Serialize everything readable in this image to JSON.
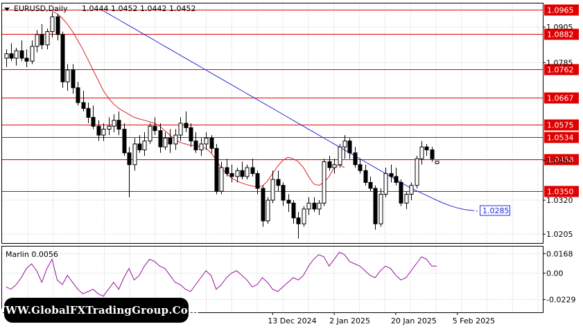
{
  "header": {
    "symbol": "EURUSD,Daily",
    "ohlc": "1.0444 1.0452 1.0442 1.0452"
  },
  "watermark": "WWW.GlobalFXTradingGroup.Com",
  "chart_data": [
    {
      "type": "candlestick",
      "title": "EURUSD,Daily",
      "ylim": [
        1.0175,
        1.0985
      ],
      "y_ticks": [
        "1.0905",
        "1.0785",
        "1.0455",
        "1.0320",
        "1.0205"
      ],
      "x_ticks": [
        {
          "label": "13 Dec 2024",
          "index": 52
        },
        {
          "label": "2 Jan 2025",
          "index": 64
        },
        {
          "label": "20 Jan 2025",
          "index": 76
        },
        {
          "label": "5 Feb 2025",
          "index": 88
        }
      ],
      "grid": true,
      "levels": [
        {
          "value": 1.0965,
          "label": "1.0965"
        },
        {
          "value": 1.0882,
          "label": "1.0882"
        },
        {
          "value": 1.0762,
          "label": "1.0762"
        },
        {
          "value": 1.0667,
          "label": "1.0667"
        },
        {
          "value": 1.0575,
          "label": "1.0575"
        },
        {
          "value": 1.0534,
          "label": "1.0534"
        },
        {
          "value": 1.0458,
          "label": "1.0458"
        },
        {
          "value": 1.035,
          "label": "1.0350"
        }
      ],
      "blue_ma_label": "1.0285",
      "colors": {
        "level": "#e00000",
        "red_ma": "#e02020",
        "blue_ma": "#1e2ad8",
        "candle": "#000000",
        "grid": "#c8c8c8",
        "label_bg": "#e00000"
      },
      "candles": [
        [
          1.08,
          1.083,
          1.077,
          1.0815
        ],
        [
          1.0815,
          1.085,
          1.079,
          1.08
        ],
        [
          1.08,
          1.0835,
          1.0775,
          1.0825
        ],
        [
          1.0825,
          1.086,
          1.079,
          1.08
        ],
        [
          1.08,
          1.083,
          1.077,
          1.079
        ],
        [
          1.079,
          1.086,
          1.078,
          1.084
        ],
        [
          1.084,
          1.0895,
          1.082,
          1.088
        ],
        [
          1.088,
          1.0915,
          1.083,
          1.0845
        ],
        [
          1.0845,
          1.09,
          1.083,
          1.089
        ],
        [
          1.089,
          1.0955,
          1.087,
          1.094
        ],
        [
          1.094,
          1.095,
          1.086,
          1.088
        ],
        [
          1.088,
          1.089,
          1.07,
          1.072
        ],
        [
          1.072,
          1.078,
          1.069,
          1.076
        ],
        [
          1.076,
          1.078,
          1.068,
          1.07
        ],
        [
          1.07,
          1.072,
          1.064,
          1.065
        ],
        [
          1.065,
          1.069,
          1.062,
          1.063
        ],
        [
          1.063,
          1.065,
          1.058,
          1.06
        ],
        [
          1.06,
          1.064,
          1.056,
          1.057
        ],
        [
          1.057,
          1.059,
          1.052,
          1.054
        ],
        [
          1.054,
          1.058,
          1.052,
          1.056
        ],
        [
          1.056,
          1.06,
          1.054,
          1.057
        ],
        [
          1.057,
          1.061,
          1.055,
          1.059
        ],
        [
          1.059,
          1.062,
          1.054,
          1.056
        ],
        [
          1.056,
          1.058,
          1.047,
          1.048
        ],
        [
          1.048,
          1.05,
          1.033,
          1.044
        ],
        [
          1.044,
          1.053,
          1.042,
          1.051
        ],
        [
          1.051,
          1.054,
          1.048,
          1.049
        ],
        [
          1.049,
          1.055,
          1.047,
          1.052
        ],
        [
          1.052,
          1.058,
          1.051,
          1.057
        ],
        [
          1.057,
          1.06,
          1.054,
          1.0555
        ],
        [
          1.0555,
          1.058,
          1.048,
          1.05
        ],
        [
          1.05,
          1.055,
          1.049,
          1.053
        ],
        [
          1.053,
          1.056,
          1.048,
          1.051
        ],
        [
          1.051,
          1.056,
          1.049,
          1.054
        ],
        [
          1.054,
          1.06,
          1.052,
          1.058
        ],
        [
          1.058,
          1.062,
          1.055,
          1.0565
        ],
        [
          1.0565,
          1.058,
          1.05,
          1.052
        ],
        [
          1.052,
          1.055,
          1.048,
          1.049
        ],
        [
          1.049,
          1.053,
          1.047,
          1.051
        ],
        [
          1.051,
          1.055,
          1.049,
          1.053
        ],
        [
          1.053,
          1.054,
          1.048,
          1.0495
        ],
        [
          1.0495,
          1.051,
          1.034,
          1.035
        ],
        [
          1.035,
          1.045,
          1.034,
          1.043
        ],
        [
          1.043,
          1.046,
          1.04,
          1.041
        ],
        [
          1.041,
          1.044,
          1.038,
          1.04
        ],
        [
          1.04,
          1.043,
          1.038,
          1.042
        ],
        [
          1.042,
          1.045,
          1.039,
          1.04
        ],
        [
          1.04,
          1.044,
          1.039,
          1.043
        ],
        [
          1.043,
          1.046,
          1.04,
          1.041
        ],
        [
          1.041,
          1.042,
          1.034,
          1.036
        ],
        [
          1.036,
          1.037,
          1.023,
          1.025
        ],
        [
          1.025,
          1.033,
          1.024,
          1.032
        ],
        [
          1.032,
          1.042,
          1.031,
          1.039
        ],
        [
          1.039,
          1.042,
          1.035,
          1.037
        ],
        [
          1.037,
          1.038,
          1.03,
          1.032
        ],
        [
          1.032,
          1.034,
          1.028,
          1.031
        ],
        [
          1.031,
          1.032,
          1.024,
          1.026
        ],
        [
          1.026,
          1.028,
          1.019,
          1.024
        ],
        [
          1.024,
          1.03,
          1.023,
          1.029
        ],
        [
          1.029,
          1.033,
          1.027,
          1.031
        ],
        [
          1.031,
          1.033,
          1.028,
          1.029
        ],
        [
          1.029,
          1.032,
          1.027,
          1.031
        ],
        [
          1.031,
          1.046,
          1.03,
          1.045
        ],
        [
          1.045,
          1.047,
          1.042,
          1.043
        ],
        [
          1.043,
          1.046,
          1.041,
          1.044
        ],
        [
          1.044,
          1.051,
          1.043,
          1.05
        ],
        [
          1.05,
          1.054,
          1.046,
          1.052
        ],
        [
          1.052,
          1.053,
          1.046,
          1.048
        ],
        [
          1.048,
          1.05,
          1.043,
          1.044
        ],
        [
          1.044,
          1.046,
          1.041,
          1.042
        ],
        [
          1.042,
          1.044,
          1.037,
          1.038
        ],
        [
          1.038,
          1.04,
          1.035,
          1.036
        ],
        [
          1.036,
          1.037,
          1.022,
          1.024
        ],
        [
          1.024,
          1.036,
          1.023,
          1.034
        ],
        [
          1.034,
          1.043,
          1.033,
          1.041
        ],
        [
          1.041,
          1.044,
          1.038,
          1.04
        ],
        [
          1.04,
          1.043,
          1.037,
          1.038
        ],
        [
          1.038,
          1.039,
          1.03,
          1.031
        ],
        [
          1.031,
          1.035,
          1.029,
          1.034
        ],
        [
          1.034,
          1.038,
          1.032,
          1.037
        ],
        [
          1.037,
          1.047,
          1.036,
          1.046
        ],
        [
          1.046,
          1.052,
          1.044,
          1.05
        ],
        [
          1.05,
          1.051,
          1.047,
          1.049
        ],
        [
          1.049,
          1.05,
          1.045,
          1.046
        ],
        [
          1.0444,
          1.0452,
          1.0442,
          1.0452
        ]
      ],
      "red_ma": [
        1.096,
        1.095,
        1.0935,
        1.0915,
        1.089,
        1.086,
        1.083,
        1.0795,
        1.076,
        1.0725,
        1.069,
        1.0665,
        1.0645,
        1.063,
        1.062,
        1.061,
        1.06,
        1.0595,
        1.059,
        1.0585,
        1.058,
        1.057,
        1.0555,
        1.054,
        1.0525,
        1.0515,
        1.051,
        1.0505,
        1.0505,
        1.05,
        1.0495,
        1.048,
        1.0455,
        1.043,
        1.041,
        1.0395,
        1.0385,
        1.0378,
        1.0372,
        1.0368,
        1.0365,
        1.0368,
        1.0385,
        1.041,
        1.0435,
        1.0455,
        1.0465,
        1.046,
        1.045,
        1.043,
        1.04,
        1.0375,
        1.037,
        1.038,
        1.04,
        1.043,
        1.044,
        1.043
      ],
      "blue_ma": [
        1.096,
        1.0945,
        1.093,
        1.0915,
        1.09,
        1.0885,
        1.087,
        1.0855,
        1.084,
        1.0825,
        1.081,
        1.0795,
        1.078,
        1.0765,
        1.075,
        1.0735,
        1.072,
        1.0705,
        1.069,
        1.0675,
        1.066,
        1.0645,
        1.063,
        1.0615,
        1.06,
        1.0585,
        1.057,
        1.0555,
        1.054,
        1.0525,
        1.051,
        1.0495,
        1.048,
        1.0465,
        1.045,
        1.0435,
        1.042,
        1.0405,
        1.039,
        1.0375,
        1.036,
        1.0348,
        1.0336,
        1.0324,
        1.0312,
        1.0302,
        1.0294,
        1.0288,
        1.0285
      ]
    },
    {
      "type": "line",
      "title": "Marlin 0.0056",
      "ylim": [
        -0.034,
        0.023
      ],
      "y_ticks": [
        "0.0168",
        "0.00",
        "-0.0229"
      ],
      "series": [
        {
          "values": [
            -0.012,
            -0.014,
            -0.01,
            -0.004,
            0.004,
            0.008,
            0.002,
            -0.008,
            0.004,
            0.012,
            -0.006,
            -0.01,
            -0.002,
            -0.008,
            -0.014,
            -0.018,
            -0.016,
            -0.014,
            -0.018,
            -0.02,
            -0.014,
            -0.008,
            -0.014,
            -0.004,
            0.004,
            -0.006,
            -0.002,
            0.006,
            0.012,
            0.01,
            0.006,
            0.004,
            -0.002,
            -0.008,
            -0.01,
            -0.014,
            -0.016,
            -0.01,
            -0.004,
            0.002,
            -0.002,
            -0.014,
            -0.01,
            -0.004,
            0.0,
            0.002,
            -0.002,
            -0.006,
            -0.012,
            -0.01,
            -0.004,
            -0.008,
            -0.014,
            -0.016,
            -0.012,
            -0.008,
            -0.004,
            -0.006,
            -0.002,
            0.006,
            0.012,
            0.016,
            0.014,
            0.006,
            0.012,
            0.018,
            0.016,
            0.01,
            0.008,
            0.006,
            0.002,
            -0.002,
            -0.004,
            0.002,
            0.006,
            0.004,
            -0.002,
            -0.006,
            -0.004,
            0.002,
            0.008,
            0.014,
            0.012,
            0.006,
            0.006
          ]
        }
      ]
    }
  ]
}
